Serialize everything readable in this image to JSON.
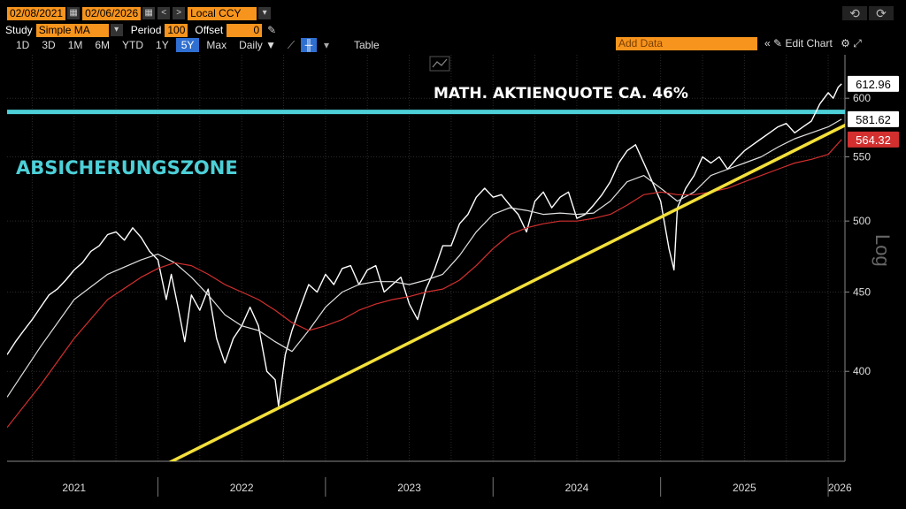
{
  "toolbar": {
    "date_start": "02/08/2021",
    "date_end": "02/06/2026",
    "currency": "Local CCY",
    "study_label": "Study",
    "study_value": "Simple MA",
    "period_label": "Period",
    "period_value": "100",
    "offset_label": "Offset",
    "offset_value": "0",
    "ranges": [
      "1D",
      "3D",
      "1M",
      "6M",
      "YTD",
      "1Y",
      "5Y",
      "Max"
    ],
    "active_range": "5Y",
    "frequency": "Daily ▼",
    "table_label": "Table",
    "add_data_placeholder": "Add Data",
    "edit_chart_label": "Edit Chart",
    "undo_icon": "undo-icon",
    "redo_icon": "redo-icon"
  },
  "annotations": {
    "headline": "MATH. AKTIENQUOTE CA. 46%",
    "zone_label": "ABSICHERUNGSZONE"
  },
  "chart_data": {
    "type": "line",
    "scale": "log",
    "ylim": [
      350,
      640
    ],
    "yticks": [
      400,
      450,
      500,
      550,
      600
    ],
    "ylabel": "Log",
    "xlim": [
      2021.1,
      2026.1
    ],
    "xtick_labels": [
      {
        "x": 2021.5,
        "label": "2021"
      },
      {
        "x": 2022.5,
        "label": "2022"
      },
      {
        "x": 2023.5,
        "label": "2023"
      },
      {
        "x": 2024.5,
        "label": "2024"
      },
      {
        "x": 2025.5,
        "label": "2025"
      },
      {
        "x": 2026.07,
        "label": "2026"
      }
    ],
    "year_dividers": [
      2022.0,
      2023.0,
      2024.0,
      2025.0,
      2026.0
    ],
    "series": [
      {
        "role": "price",
        "color": "#ffffff",
        "last_value": 612.96,
        "points": [
          [
            2021.1,
            410
          ],
          [
            2021.15,
            418
          ],
          [
            2021.2,
            425
          ],
          [
            2021.25,
            432
          ],
          [
            2021.3,
            440
          ],
          [
            2021.35,
            448
          ],
          [
            2021.4,
            452
          ],
          [
            2021.45,
            458
          ],
          [
            2021.5,
            465
          ],
          [
            2021.55,
            470
          ],
          [
            2021.6,
            478
          ],
          [
            2021.65,
            482
          ],
          [
            2021.7,
            490
          ],
          [
            2021.75,
            492
          ],
          [
            2021.8,
            486
          ],
          [
            2021.85,
            495
          ],
          [
            2021.9,
            488
          ],
          [
            2021.95,
            478
          ],
          [
            2022.0,
            472
          ],
          [
            2022.05,
            445
          ],
          [
            2022.08,
            462
          ],
          [
            2022.12,
            440
          ],
          [
            2022.16,
            418
          ],
          [
            2022.2,
            448
          ],
          [
            2022.25,
            438
          ],
          [
            2022.3,
            452
          ],
          [
            2022.35,
            420
          ],
          [
            2022.4,
            405
          ],
          [
            2022.45,
            420
          ],
          [
            2022.5,
            428
          ],
          [
            2022.55,
            440
          ],
          [
            2022.6,
            428
          ],
          [
            2022.65,
            400
          ],
          [
            2022.7,
            395
          ],
          [
            2022.72,
            380
          ],
          [
            2022.76,
            410
          ],
          [
            2022.8,
            425
          ],
          [
            2022.85,
            440
          ],
          [
            2022.9,
            455
          ],
          [
            2022.95,
            450
          ],
          [
            2023.0,
            462
          ],
          [
            2023.05,
            455
          ],
          [
            2023.1,
            466
          ],
          [
            2023.15,
            468
          ],
          [
            2023.2,
            455
          ],
          [
            2023.25,
            465
          ],
          [
            2023.3,
            468
          ],
          [
            2023.35,
            450
          ],
          [
            2023.4,
            455
          ],
          [
            2023.45,
            460
          ],
          [
            2023.5,
            442
          ],
          [
            2023.55,
            432
          ],
          [
            2023.6,
            452
          ],
          [
            2023.65,
            465
          ],
          [
            2023.7,
            482
          ],
          [
            2023.75,
            482
          ],
          [
            2023.8,
            498
          ],
          [
            2023.85,
            505
          ],
          [
            2023.9,
            518
          ],
          [
            2023.95,
            525
          ],
          [
            2024.0,
            518
          ],
          [
            2024.05,
            520
          ],
          [
            2024.1,
            512
          ],
          [
            2024.15,
            505
          ],
          [
            2024.2,
            492
          ],
          [
            2024.25,
            515
          ],
          [
            2024.3,
            522
          ],
          [
            2024.35,
            510
          ],
          [
            2024.4,
            518
          ],
          [
            2024.45,
            522
          ],
          [
            2024.5,
            502
          ],
          [
            2024.55,
            505
          ],
          [
            2024.6,
            512
          ],
          [
            2024.65,
            520
          ],
          [
            2024.7,
            530
          ],
          [
            2024.75,
            545
          ],
          [
            2024.8,
            555
          ],
          [
            2024.85,
            560
          ],
          [
            2024.9,
            545
          ],
          [
            2024.95,
            530
          ],
          [
            2025.0,
            515
          ],
          [
            2025.05,
            480
          ],
          [
            2025.08,
            465
          ],
          [
            2025.1,
            510
          ],
          [
            2025.15,
            525
          ],
          [
            2025.2,
            535
          ],
          [
            2025.25,
            550
          ],
          [
            2025.3,
            545
          ],
          [
            2025.35,
            550
          ],
          [
            2025.4,
            540
          ],
          [
            2025.45,
            548
          ],
          [
            2025.5,
            555
          ],
          [
            2025.55,
            560
          ],
          [
            2025.6,
            565
          ],
          [
            2025.65,
            570
          ],
          [
            2025.7,
            575
          ],
          [
            2025.75,
            578
          ],
          [
            2025.8,
            570
          ],
          [
            2025.85,
            575
          ],
          [
            2025.9,
            580
          ],
          [
            2025.95,
            595
          ],
          [
            2026.0,
            605
          ],
          [
            2026.03,
            600
          ],
          [
            2026.06,
            610
          ],
          [
            2026.08,
            612.96
          ]
        ]
      },
      {
        "role": "moving-average-fast",
        "color": "#e0e0e0",
        "last_value": 581.62,
        "points": [
          [
            2021.1,
            385
          ],
          [
            2021.3,
            415
          ],
          [
            2021.5,
            445
          ],
          [
            2021.7,
            462
          ],
          [
            2021.9,
            472
          ],
          [
            2022.0,
            476
          ],
          [
            2022.1,
            470
          ],
          [
            2022.2,
            460
          ],
          [
            2022.3,
            448
          ],
          [
            2022.4,
            435
          ],
          [
            2022.5,
            428
          ],
          [
            2022.6,
            425
          ],
          [
            2022.7,
            418
          ],
          [
            2022.8,
            412
          ],
          [
            2022.9,
            425
          ],
          [
            2023.0,
            440
          ],
          [
            2023.1,
            450
          ],
          [
            2023.2,
            455
          ],
          [
            2023.3,
            457
          ],
          [
            2023.4,
            457
          ],
          [
            2023.5,
            455
          ],
          [
            2023.6,
            458
          ],
          [
            2023.7,
            462
          ],
          [
            2023.8,
            475
          ],
          [
            2023.9,
            492
          ],
          [
            2024.0,
            505
          ],
          [
            2024.1,
            510
          ],
          [
            2024.2,
            508
          ],
          [
            2024.3,
            505
          ],
          [
            2024.4,
            506
          ],
          [
            2024.5,
            505
          ],
          [
            2024.6,
            506
          ],
          [
            2024.7,
            515
          ],
          [
            2024.8,
            530
          ],
          [
            2024.9,
            535
          ],
          [
            2025.0,
            525
          ],
          [
            2025.1,
            515
          ],
          [
            2025.2,
            522
          ],
          [
            2025.3,
            535
          ],
          [
            2025.4,
            540
          ],
          [
            2025.5,
            545
          ],
          [
            2025.6,
            550
          ],
          [
            2025.7,
            558
          ],
          [
            2025.8,
            565
          ],
          [
            2025.9,
            570
          ],
          [
            2026.0,
            575
          ],
          [
            2026.08,
            581.62
          ]
        ]
      },
      {
        "role": "moving-average-slow",
        "color": "#d32f2f",
        "last_value": 564.32,
        "points": [
          [
            2021.1,
            368
          ],
          [
            2021.3,
            392
          ],
          [
            2021.5,
            420
          ],
          [
            2021.7,
            445
          ],
          [
            2021.9,
            460
          ],
          [
            2022.0,
            466
          ],
          [
            2022.1,
            470
          ],
          [
            2022.2,
            468
          ],
          [
            2022.3,
            462
          ],
          [
            2022.4,
            455
          ],
          [
            2022.5,
            450
          ],
          [
            2022.6,
            445
          ],
          [
            2022.7,
            438
          ],
          [
            2022.8,
            430
          ],
          [
            2022.9,
            425
          ],
          [
            2023.0,
            428
          ],
          [
            2023.1,
            432
          ],
          [
            2023.2,
            438
          ],
          [
            2023.3,
            442
          ],
          [
            2023.4,
            445
          ],
          [
            2023.5,
            447
          ],
          [
            2023.6,
            450
          ],
          [
            2023.7,
            452
          ],
          [
            2023.8,
            458
          ],
          [
            2023.9,
            468
          ],
          [
            2024.0,
            480
          ],
          [
            2024.1,
            490
          ],
          [
            2024.2,
            495
          ],
          [
            2024.3,
            498
          ],
          [
            2024.4,
            500
          ],
          [
            2024.5,
            500
          ],
          [
            2024.6,
            502
          ],
          [
            2024.7,
            505
          ],
          [
            2024.8,
            512
          ],
          [
            2024.9,
            520
          ],
          [
            2025.0,
            522
          ],
          [
            2025.1,
            520
          ],
          [
            2025.2,
            520
          ],
          [
            2025.3,
            522
          ],
          [
            2025.4,
            525
          ],
          [
            2025.5,
            530
          ],
          [
            2025.6,
            535
          ],
          [
            2025.7,
            540
          ],
          [
            2025.8,
            545
          ],
          [
            2025.9,
            548
          ],
          [
            2026.0,
            552
          ],
          [
            2026.08,
            564.32
          ]
        ]
      }
    ],
    "horizontal_line": {
      "value": 588,
      "color": "#4dd0d8"
    },
    "trendline": {
      "from": [
        2021.85,
        340
      ],
      "to": [
        2026.15,
        580
      ],
      "color": "#f3e03a"
    },
    "label_boxes": [
      {
        "value": 612.96,
        "bg": "#ffffff",
        "fg": "#000000"
      },
      {
        "value": 581.62,
        "bg": "#ffffff",
        "fg": "#000000"
      },
      {
        "value": 564.32,
        "bg": "#d32f2f",
        "fg": "#ffffff"
      }
    ]
  }
}
